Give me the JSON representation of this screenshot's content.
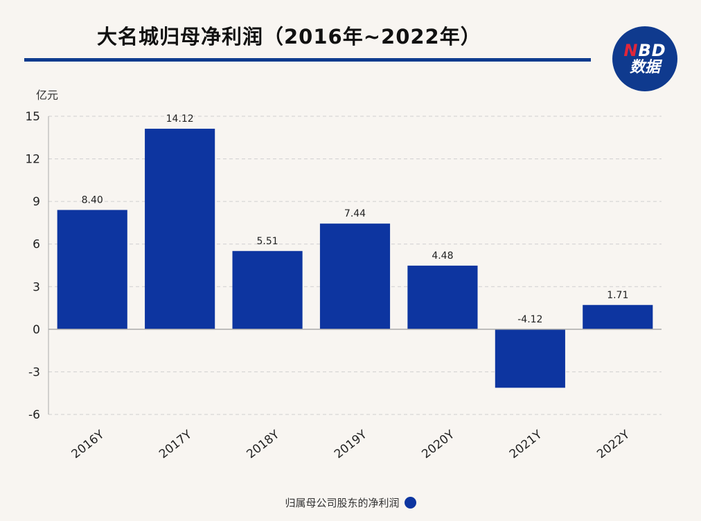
{
  "header": {
    "title": "大名城归母净利润（2016年~2022年）",
    "logo": {
      "line1_accent": "N",
      "line1_rest": "BD",
      "line2": "数据"
    }
  },
  "chart_data": {
    "type": "bar",
    "title": "大名城归母净利润（2016年~2022年）",
    "ylabel": "亿元",
    "xlabel": "",
    "categories": [
      "2016Y",
      "2017Y",
      "2018Y",
      "2019Y",
      "2020Y",
      "2021Y",
      "2022Y"
    ],
    "series": [
      {
        "name": "归属母公司股东的净利润",
        "values": [
          8.4,
          14.12,
          5.51,
          7.44,
          4.48,
          -4.12,
          1.71
        ],
        "labels": [
          "8.40",
          "14.12",
          "5.51",
          "7.44",
          "4.48",
          "-4.12",
          "1.71"
        ],
        "color": "#0d35a0"
      }
    ],
    "ylim": [
      -6,
      15
    ],
    "yticks": [
      "-6",
      "-3",
      "0",
      "3",
      "6",
      "9",
      "12",
      "15"
    ],
    "grid": true,
    "legend": "bottom-center"
  },
  "colors": {
    "bar": "#0d35a0",
    "accent": "#0d3b8e",
    "grid": "#cfcfcf"
  }
}
